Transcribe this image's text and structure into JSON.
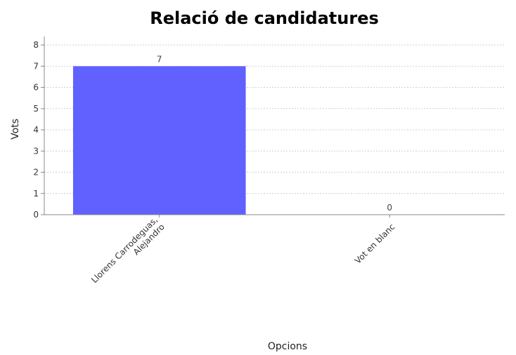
{
  "chart_data": {
    "type": "bar",
    "title": "Relació de candidatures",
    "xlabel": "Opcions",
    "ylabel": "Vots",
    "categories": [
      [
        "Llorens Carrodeguas,",
        "Alejandro"
      ],
      [
        "Vot en blanc"
      ]
    ],
    "values": [
      7,
      0
    ],
    "ylim": [
      0,
      8.4
    ],
    "yticks": [
      0,
      1,
      2,
      3,
      4,
      5,
      6,
      7,
      8
    ],
    "grid": true,
    "bar_color": "#6161ff",
    "grid_color": "#cfcfcf",
    "axis_color": "#888888"
  }
}
